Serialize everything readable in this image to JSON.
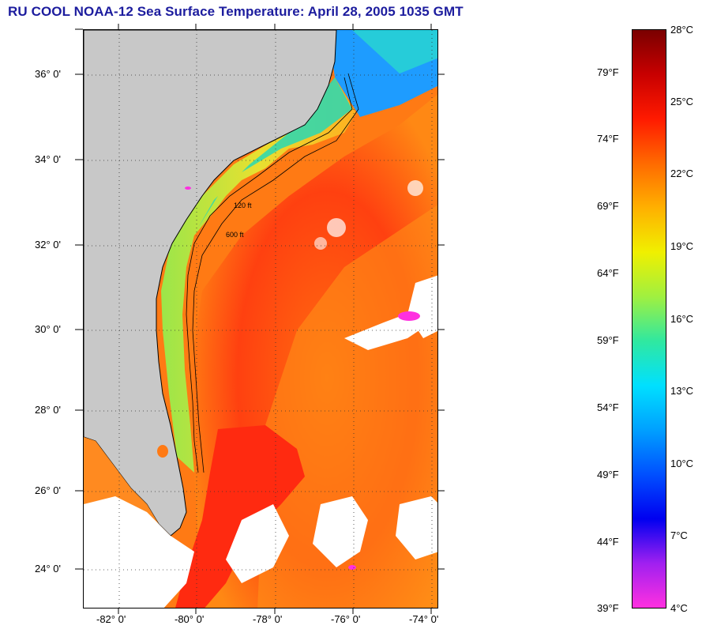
{
  "title": "RU COOL  NOAA-12  Sea Surface Temperature:  April 28, 2005 1035 GMT",
  "map": {
    "latitude_labels": [
      "36° 0'",
      "34° 0'",
      "32° 0'",
      "30° 0'",
      "28° 0'",
      "26° 0'",
      "24° 0'"
    ],
    "longitude_labels": [
      "-82° 0'",
      "-80° 0'",
      "-78° 0'",
      "-76° 0'",
      "-74° 0'"
    ],
    "isobath_labels": [
      "120 ft",
      "600 ft"
    ],
    "colors": {
      "land": "#c8c8c8",
      "gulf_stream": "#ff3a10",
      "warm_water": "#ff8a14",
      "shelf_water": "#9be64a",
      "cool_water": "#28d8b4",
      "cold_water": "#1e78ff",
      "cloud": "#ffffff"
    }
  },
  "colorbar": {
    "fahrenheit_labels": [
      "79°F",
      "74°F",
      "69°F",
      "64°F",
      "59°F",
      "54°F",
      "49°F",
      "44°F",
      "39°F"
    ],
    "celsius_labels": [
      "28°C",
      "25°C",
      "22°C",
      "19°C",
      "16°C",
      "13°C",
      "10°C",
      "7°C",
      "4°C"
    ],
    "color_stops": [
      "#7a0000",
      "#c80000",
      "#ff1a00",
      "#ff6a00",
      "#ffb000",
      "#f0f000",
      "#a0f040",
      "#30e8a0",
      "#00e0ff",
      "#00a0ff",
      "#0050ff",
      "#0000f0",
      "#a020f0",
      "#ff30e0"
    ]
  }
}
